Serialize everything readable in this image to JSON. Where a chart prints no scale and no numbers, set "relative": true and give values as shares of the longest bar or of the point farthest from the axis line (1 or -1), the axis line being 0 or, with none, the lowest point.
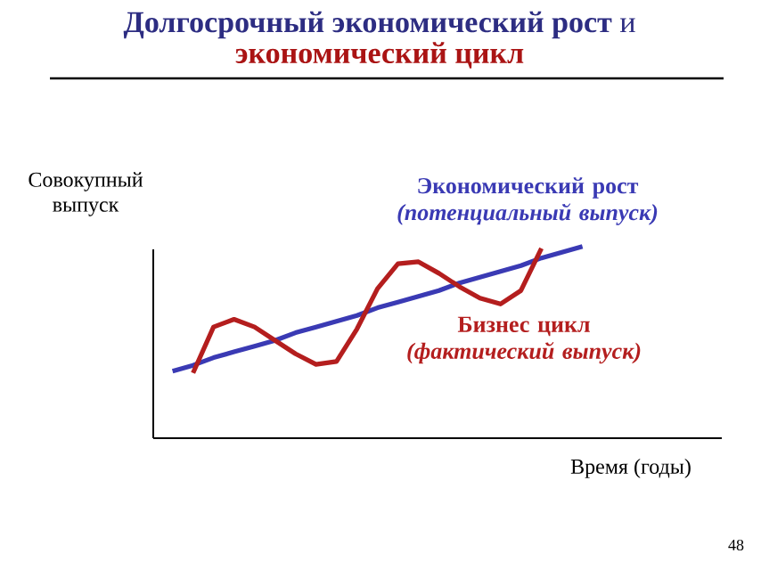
{
  "chart_data": {
    "type": "line",
    "title": "**Долгосрочный экономический рост** и",
    "subtitle": "экономический цикл",
    "ylabel": "Совокупный выпуск",
    "xlabel": "Время (годы)",
    "relative": true,
    "categories": [
      null,
      null,
      null,
      null,
      null,
      null,
      null,
      null,
      null,
      null,
      null,
      null,
      null,
      null,
      null,
      null,
      null,
      null,
      null,
      null,
      null
    ],
    "series": [
      {
        "name": "Экономический рост *(потенциальный выпуск)*",
        "color": "#3a3ab4",
        "values": [
          0.35,
          0.38,
          0.42,
          0.45,
          0.48,
          0.51,
          0.55,
          0.58,
          0.61,
          0.64,
          0.68,
          0.71,
          0.74,
          0.77,
          0.81,
          0.84,
          0.87,
          0.9,
          0.94,
          0.97,
          1.0
        ]
      },
      {
        "name": "Бизнес цикл *(фактический выпуск)*",
        "color": "#b41e1e",
        "values": [
          null,
          0.34,
          0.58,
          0.62,
          0.58,
          0.51,
          0.44,
          0.385,
          0.4,
          0.57,
          0.78,
          0.91,
          0.92,
          0.86,
          0.79,
          0.73,
          0.7,
          0.77,
          0.99,
          null,
          null
        ]
      }
    ],
    "annotations": [
      "48"
    ]
  }
}
